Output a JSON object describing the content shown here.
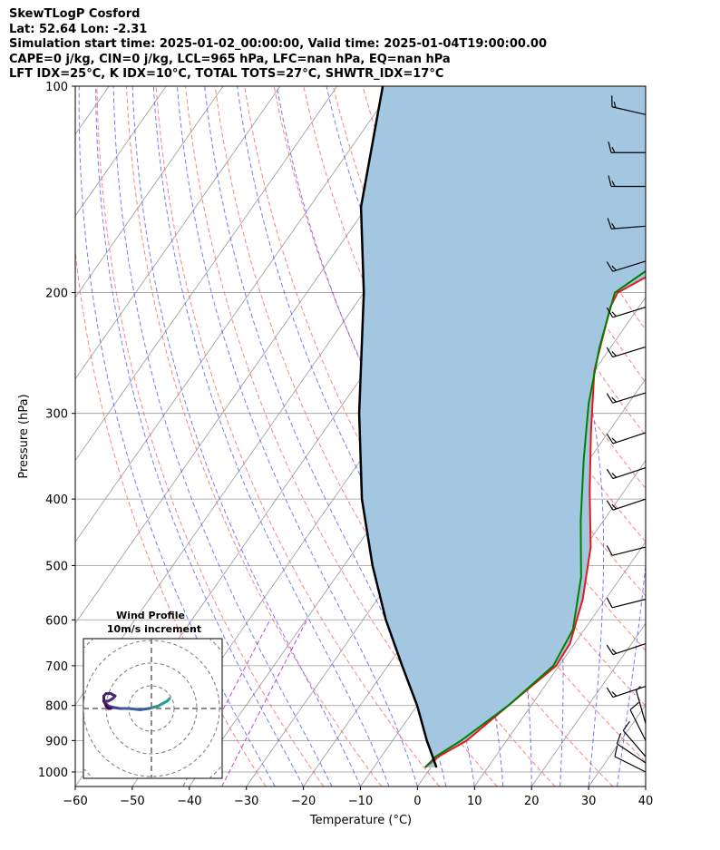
{
  "header": {
    "line1": "SkewTLogP Cosford",
    "line2": "Lat: 52.64   Lon: -2.31",
    "line3": "Simulation start time: 2025-01-02_00:00:00, Valid time: 2025-01-04T19:00:00.00",
    "line4": "CAPE=0 j/kg, CIN=0 j/kg, LCL=965 hPa, LFC=nan hPa, EQ=nan hPa",
    "line5": "LFT IDX=25°C, K IDX=10°C, TOTAL TOTS=27°C, SHWTR_IDX=17°C"
  },
  "chart_data": {
    "type": "line",
    "subtype": "skew-T log-P diagram",
    "xlabel": "Temperature (°C)",
    "ylabel": "Pressure (hPa)",
    "xlim": [
      -60,
      40
    ],
    "ylim": [
      1050,
      100
    ],
    "x_ticks": [
      -60,
      -50,
      -40,
      -30,
      -20,
      -10,
      0,
      10,
      20,
      30,
      40
    ],
    "x_tick_labels": [
      "−60",
      "−50",
      "−40",
      "−30",
      "−20",
      "−10",
      "0",
      "10",
      "20",
      "30",
      "40"
    ],
    "y_ticks": [
      1000,
      900,
      800,
      700,
      600,
      500,
      400,
      300,
      200,
      100
    ],
    "y_tick_labels": [
      "1000",
      "900",
      "800",
      "700",
      "600",
      "500",
      "400",
      "300",
      "200",
      "100"
    ],
    "colors": {
      "temperature": "#e41a1c",
      "dewpoint": "#008000",
      "parcel": "#000000",
      "shade": "#a3c7e0",
      "dry_adiabat": "#ff6b6b",
      "moist_adiabat": "#4d4dff",
      "isotherm": "#999999",
      "mixing_ratio": "#b44bd9"
    },
    "series": [
      {
        "name": "Temperature",
        "points": [
          [
            -1,
            985
          ],
          [
            0,
            950
          ],
          [
            3,
            900
          ],
          [
            6,
            800
          ],
          [
            9.5,
            700
          ],
          [
            9.2,
            650
          ],
          [
            6,
            560
          ],
          [
            1,
            470
          ],
          [
            -6,
            390
          ],
          [
            -13,
            320
          ],
          [
            -20,
            260
          ],
          [
            -25,
            210
          ],
          [
            -25.5,
            200
          ],
          [
            -22.5,
            190
          ],
          [
            -19,
            175
          ],
          [
            -16,
            155
          ],
          [
            -12,
            135
          ],
          [
            -8,
            118
          ],
          [
            -5,
            100
          ]
        ]
      },
      {
        "name": "Dewpoint",
        "points": [
          [
            -1,
            985
          ],
          [
            -0.5,
            950
          ],
          [
            2,
            900
          ],
          [
            6,
            800
          ],
          [
            9,
            700
          ],
          [
            8,
            620
          ],
          [
            3,
            520
          ],
          [
            -4,
            430
          ],
          [
            -11,
            350
          ],
          [
            -17,
            290
          ],
          [
            -22,
            240
          ],
          [
            -26,
            200
          ],
          [
            -23,
            185
          ],
          [
            -17,
            165
          ],
          [
            -16,
            150
          ],
          [
            -18,
            130
          ],
          [
            -14,
            115
          ],
          [
            -10,
            100
          ]
        ]
      },
      {
        "name": "Parcel",
        "points": [
          [
            1,
            985
          ],
          [
            -1,
            950
          ],
          [
            -4,
            900
          ],
          [
            -10,
            800
          ],
          [
            -17.5,
            700
          ],
          [
            -26,
            600
          ],
          [
            -35,
            500
          ],
          [
            -45,
            400
          ],
          [
            -56,
            300
          ],
          [
            -70,
            200
          ],
          [
            -81,
            150
          ],
          [
            -92,
            100
          ]
        ]
      }
    ],
    "wind_barbs": [
      {
        "p": 1000,
        "u": -8,
        "v": 4
      },
      {
        "p": 970,
        "u": -9,
        "v": 6
      },
      {
        "p": 950,
        "u": -6,
        "v": 7
      },
      {
        "p": 900,
        "u": -4,
        "v": 8
      },
      {
        "p": 850,
        "u": -2,
        "v": 7
      },
      {
        "p": 750,
        "u": -12,
        "v": -4
      },
      {
        "p": 650,
        "u": -12,
        "v": -4
      },
      {
        "p": 560,
        "u": -12,
        "v": -3
      },
      {
        "p": 470,
        "u": -12,
        "v": -3
      },
      {
        "p": 400,
        "u": -12,
        "v": -4
      },
      {
        "p": 360,
        "u": -12,
        "v": -4
      },
      {
        "p": 320,
        "u": -12,
        "v": -4
      },
      {
        "p": 280,
        "u": -13,
        "v": -4
      },
      {
        "p": 240,
        "u": -13,
        "v": -4
      },
      {
        "p": 210,
        "u": -13,
        "v": -4
      },
      {
        "p": 180,
        "u": -13,
        "v": -4
      },
      {
        "p": 160,
        "u": -13,
        "v": -1
      },
      {
        "p": 140,
        "u": -13,
        "v": 0
      },
      {
        "p": 125,
        "u": -13,
        "v": 0
      },
      {
        "p": 110,
        "u": -13,
        "v": 3
      }
    ],
    "inset": {
      "title": "Wind Profile",
      "subtitle": "10m/s increment",
      "ring_increment_ms": 10,
      "hodograph": [
        [
          8,
          4
        ],
        [
          7,
          3
        ],
        [
          5,
          2
        ],
        [
          3,
          1
        ],
        [
          1,
          0.5
        ],
        [
          -1,
          0
        ],
        [
          -5,
          -0.5
        ],
        [
          -10,
          0
        ],
        [
          -14,
          0
        ],
        [
          -17,
          0.5
        ],
        [
          -19,
          1
        ],
        [
          -20,
          2
        ],
        [
          -21,
          3
        ],
        [
          -19,
          3
        ],
        [
          -17,
          4
        ],
        [
          -16,
          5
        ],
        [
          -18,
          6
        ],
        [
          -20,
          6
        ],
        [
          -21,
          5
        ],
        [
          -21,
          3
        ],
        [
          -20,
          1
        ],
        [
          -19,
          0
        ],
        [
          -18,
          0
        ]
      ]
    }
  }
}
